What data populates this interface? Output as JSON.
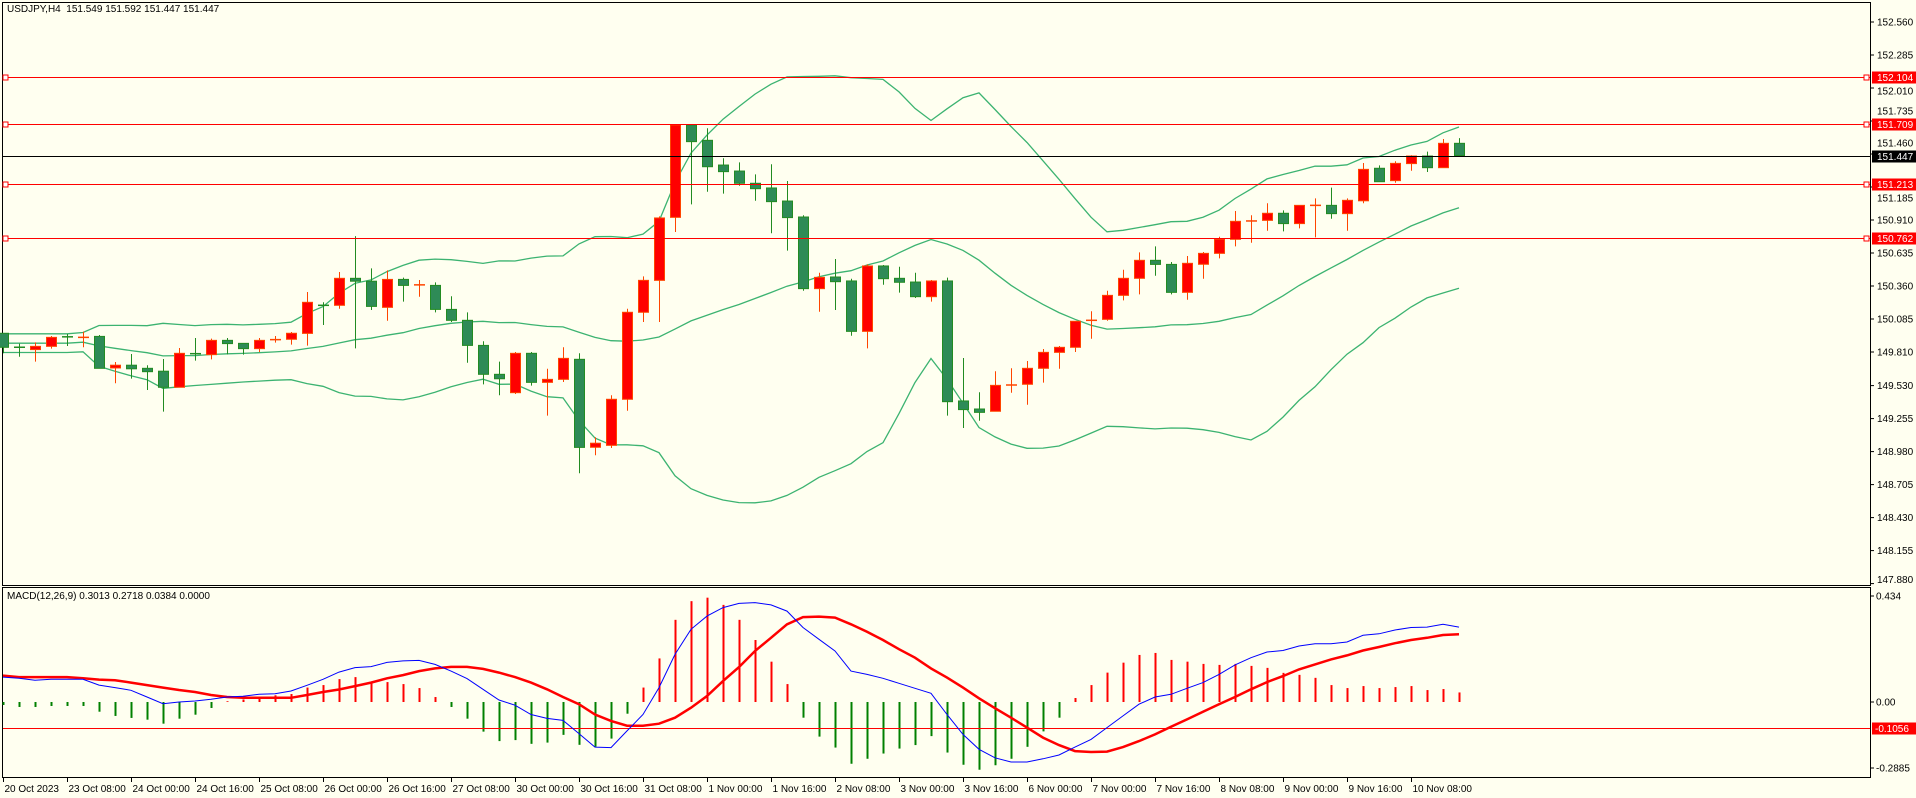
{
  "symbol_header": "USDJPY,H4  151.549 151.592 151.447 151.447",
  "macd_header": "MACD(12,26,9) 0.3013 0.2718 0.0384 0.0000",
  "colors": {
    "background": "#FFFFF0",
    "bull_fill": "#FF0000",
    "bull_border": "#FF4500",
    "bear_fill": "#2E8B57",
    "bear_border": "#228B22",
    "bands": "#3CB371",
    "hline": "#FF0000",
    "bid_line": "#000000",
    "macd_line": "#0000FF",
    "signal_line": "#FF0000",
    "hist_pos": "#FF0000",
    "hist_neg": "#008000"
  },
  "price_axis": {
    "min": 147.868,
    "max": 152.56,
    "ticks": [
      "152.560",
      "152.285",
      "152.010",
      "151.735",
      "151.460",
      "151.185",
      "150.910",
      "150.635",
      "150.360",
      "150.085",
      "149.810",
      "149.530",
      "149.255",
      "148.980",
      "148.705",
      "148.430",
      "148.155",
      "147.880"
    ]
  },
  "horizontal_lines": [
    {
      "price": 152.104,
      "label": "152.104",
      "kind": "level"
    },
    {
      "price": 151.709,
      "label": "151.709",
      "kind": "level"
    },
    {
      "price": 151.213,
      "label": "151.213",
      "kind": "level"
    },
    {
      "price": 150.762,
      "label": "150.762",
      "kind": "level"
    },
    {
      "price": 151.447,
      "label": "151.447",
      "kind": "bid"
    }
  ],
  "time_axis": [
    "20 Oct 2023",
    "23 Oct 08:00",
    "24 Oct 00:00",
    "24 Oct 16:00",
    "25 Oct 08:00",
    "26 Oct 00:00",
    "26 Oct 16:00",
    "27 Oct 08:00",
    "30 Oct 00:00",
    "30 Oct 16:00",
    "31 Oct 08:00",
    "1 Nov 00:00",
    "1 Nov 16:00",
    "2 Nov 08:00",
    "3 Nov 00:00",
    "3 Nov 16:00",
    "6 Nov 00:00",
    "7 Nov 00:00",
    "7 Nov 16:00",
    "8 Nov 08:00",
    "9 Nov 00:00",
    "9 Nov 16:00",
    "10 Nov 08:00"
  ],
  "chart_data": {
    "type": "candlestick",
    "title": "USDJPY,H4",
    "ohlc_fields": [
      "open",
      "high",
      "low",
      "close"
    ],
    "ohlc": [
      [
        149.966,
        149.966,
        149.8,
        149.849
      ],
      [
        149.85,
        149.88,
        149.77,
        149.849
      ],
      [
        149.83,
        149.89,
        149.73,
        149.857
      ],
      [
        149.857,
        149.943,
        149.838,
        149.932
      ],
      [
        149.943,
        149.96,
        149.86,
        149.93
      ],
      [
        149.93,
        149.98,
        149.85,
        149.934
      ],
      [
        149.94,
        149.952,
        149.674,
        149.674
      ],
      [
        149.677,
        149.727,
        149.55,
        149.7
      ],
      [
        149.7,
        149.793,
        149.588,
        149.67
      ],
      [
        149.674,
        149.7,
        149.493,
        149.646
      ],
      [
        149.65,
        149.752,
        149.313,
        149.516
      ],
      [
        149.516,
        149.843,
        149.516,
        149.799
      ],
      [
        149.804,
        149.927,
        149.738,
        149.788
      ],
      [
        149.788,
        149.921,
        149.749,
        149.907
      ],
      [
        149.907,
        149.927,
        149.79,
        149.88
      ],
      [
        149.882,
        149.882,
        149.788,
        149.838
      ],
      [
        149.838,
        149.927,
        149.81,
        149.907
      ],
      [
        149.91,
        149.943,
        149.888,
        149.916
      ],
      [
        149.916,
        149.977,
        149.871,
        149.966
      ],
      [
        149.965,
        150.31,
        149.863,
        150.224
      ],
      [
        150.2,
        150.225,
        150.035,
        150.198
      ],
      [
        150.199,
        150.477,
        150.17,
        150.424
      ],
      [
        150.424,
        150.776,
        149.84,
        150.4
      ],
      [
        150.4,
        150.507,
        150.16,
        150.19
      ],
      [
        150.182,
        150.49,
        150.07,
        150.415
      ],
      [
        150.415,
        150.43,
        150.23,
        150.365
      ],
      [
        150.368,
        150.41,
        150.27,
        150.371
      ],
      [
        150.365,
        150.39,
        150.14,
        150.165
      ],
      [
        150.165,
        150.275,
        150.06,
        150.074
      ],
      [
        150.074,
        150.14,
        149.72,
        149.865
      ],
      [
        149.865,
        149.9,
        149.54,
        149.624
      ],
      [
        149.624,
        149.73,
        149.45,
        149.587
      ],
      [
        149.471,
        149.81,
        149.46,
        149.799
      ],
      [
        149.799,
        149.81,
        149.53,
        149.557
      ],
      [
        149.557,
        149.67,
        149.28,
        149.582
      ],
      [
        149.582,
        149.85,
        149.56,
        149.757
      ],
      [
        149.749,
        149.8,
        148.8,
        149.015
      ],
      [
        149.016,
        149.1,
        148.95,
        149.05
      ],
      [
        149.032,
        149.45,
        149.01,
        149.416
      ],
      [
        149.416,
        150.17,
        149.32,
        150.141
      ],
      [
        150.141,
        150.44,
        150.06,
        150.407
      ],
      [
        150.407,
        150.94,
        150.06,
        150.927
      ],
      [
        150.932,
        151.71,
        150.81,
        151.702
      ],
      [
        151.702,
        151.71,
        151.04,
        151.563
      ],
      [
        151.574,
        151.675,
        151.145,
        151.354
      ],
      [
        151.368,
        151.425,
        151.13,
        151.313
      ],
      [
        151.318,
        151.39,
        151.195,
        151.216
      ],
      [
        151.216,
        151.29,
        151.07,
        151.171
      ],
      [
        151.177,
        151.375,
        150.8,
        151.063
      ],
      [
        151.068,
        151.235,
        150.655,
        150.93
      ],
      [
        150.935,
        150.95,
        150.32,
        150.338
      ],
      [
        150.338,
        150.47,
        150.145,
        150.432
      ],
      [
        150.435,
        150.585,
        150.16,
        150.396
      ],
      [
        150.402,
        150.42,
        149.945,
        149.982
      ],
      [
        149.982,
        150.54,
        149.84,
        150.527
      ],
      [
        150.527,
        150.535,
        150.37,
        150.421
      ],
      [
        150.424,
        150.52,
        150.305,
        150.391
      ],
      [
        150.393,
        150.47,
        150.26,
        150.271
      ],
      [
        150.271,
        150.41,
        150.23,
        150.402
      ],
      [
        150.402,
        150.43,
        149.28,
        149.396
      ],
      [
        149.402,
        149.76,
        149.177,
        149.33
      ],
      [
        149.335,
        149.475,
        149.237,
        149.307
      ],
      [
        149.316,
        149.65,
        149.316,
        149.532
      ],
      [
        149.53,
        149.675,
        149.47,
        149.54
      ],
      [
        149.541,
        149.735,
        149.37,
        149.674
      ],
      [
        149.674,
        149.835,
        149.555,
        149.807
      ],
      [
        149.807,
        149.86,
        149.67,
        149.849
      ],
      [
        149.849,
        150.066,
        149.81,
        150.066
      ],
      [
        150.066,
        150.15,
        149.92,
        150.082
      ],
      [
        150.082,
        150.32,
        150.07,
        150.282
      ],
      [
        150.282,
        150.495,
        150.24,
        150.424
      ],
      [
        150.424,
        150.64,
        150.29,
        150.574
      ],
      [
        150.574,
        150.69,
        150.445,
        150.54
      ],
      [
        150.54,
        150.56,
        150.29,
        150.307
      ],
      [
        150.307,
        150.61,
        150.245,
        150.549
      ],
      [
        150.541,
        150.643,
        150.42,
        150.632
      ],
      [
        150.632,
        150.77,
        150.59,
        150.749
      ],
      [
        150.749,
        150.985,
        150.69,
        150.899
      ],
      [
        150.899,
        150.95,
        150.72,
        150.905
      ],
      [
        150.907,
        151.05,
        150.82,
        150.966
      ],
      [
        150.966,
        150.99,
        150.815,
        150.88
      ],
      [
        150.88,
        151.032,
        150.84,
        151.032
      ],
      [
        151.03,
        151.09,
        150.765,
        151.034
      ],
      [
        151.032,
        151.18,
        150.92,
        150.963
      ],
      [
        150.963,
        151.09,
        150.82,
        151.074
      ],
      [
        151.07,
        151.385,
        151.05,
        151.332
      ],
      [
        151.341,
        151.365,
        151.229,
        151.229
      ],
      [
        151.238,
        151.4,
        151.22,
        151.382
      ],
      [
        151.38,
        151.45,
        151.32,
        151.443
      ],
      [
        151.443,
        151.48,
        151.31,
        151.346
      ],
      [
        151.346,
        151.585,
        151.346,
        151.549
      ],
      [
        151.549,
        151.592,
        151.447,
        151.447
      ]
    ],
    "bollinger": {
      "period": 20,
      "deviation": 2
    },
    "macd": {
      "axis": {
        "min": -0.2885,
        "max": 0.434,
        "labels": [
          "0.434",
          "0.00",
          "-0.2885"
        ],
        "label_values": [
          0.434,
          0,
          -0.2885
        ]
      },
      "level": {
        "value": -0.1056,
        "label": "-0.1056"
      },
      "main": [
        0.1,
        0.095,
        0.087,
        0.091,
        0.091,
        0.091,
        0.068,
        0.058,
        0.047,
        0.02,
        -0.007,
        0.0,
        0.004,
        0.011,
        0.02,
        0.023,
        0.031,
        0.033,
        0.044,
        0.067,
        0.091,
        0.12,
        0.138,
        0.142,
        0.159,
        0.165,
        0.167,
        0.151,
        0.124,
        0.094,
        0.051,
        0.008,
        -0.013,
        -0.05,
        -0.066,
        -0.074,
        -0.127,
        -0.181,
        -0.183,
        -0.116,
        -0.05,
        0.058,
        0.191,
        0.292,
        0.345,
        0.379,
        0.396,
        0.399,
        0.39,
        0.365,
        0.299,
        0.252,
        0.205,
        0.124,
        0.111,
        0.095,
        0.075,
        0.055,
        0.035,
        -0.05,
        -0.13,
        -0.19,
        -0.224,
        -0.241,
        -0.241,
        -0.228,
        -0.213,
        -0.181,
        -0.15,
        -0.103,
        -0.056,
        -0.009,
        0.02,
        0.031,
        0.055,
        0.078,
        0.111,
        0.149,
        0.178,
        0.201,
        0.207,
        0.225,
        0.234,
        0.234,
        0.241,
        0.268,
        0.274,
        0.289,
        0.299,
        0.301,
        0.312,
        0.301
      ],
      "signal": [
        0.106,
        0.1,
        0.1,
        0.1,
        0.1,
        0.095,
        0.09,
        0.087,
        0.078,
        0.068,
        0.058,
        0.048,
        0.04,
        0.028,
        0.02,
        0.017,
        0.017,
        0.017,
        0.017,
        0.028,
        0.04,
        0.05,
        0.064,
        0.078,
        0.095,
        0.108,
        0.124,
        0.135,
        0.141,
        0.141,
        0.133,
        0.118,
        0.1,
        0.078,
        0.051,
        0.02,
        -0.009,
        -0.05,
        -0.076,
        -0.095,
        -0.095,
        -0.087,
        -0.063,
        -0.023,
        0.024,
        0.084,
        0.14,
        0.205,
        0.258,
        0.312,
        0.341,
        0.343,
        0.339,
        0.312,
        0.282,
        0.249,
        0.212,
        0.178,
        0.135,
        0.098,
        0.058,
        0.015,
        -0.025,
        -0.063,
        -0.103,
        -0.143,
        -0.173,
        -0.197,
        -0.201,
        -0.199,
        -0.181,
        -0.157,
        -0.13,
        -0.099,
        -0.07,
        -0.039,
        -0.009,
        0.02,
        0.051,
        0.08,
        0.104,
        0.131,
        0.151,
        0.171,
        0.187,
        0.207,
        0.221,
        0.236,
        0.249,
        0.258,
        0.269,
        0.272
      ],
      "histogram": [
        -0.012,
        -0.02,
        -0.02,
        -0.016,
        -0.016,
        -0.016,
        -0.039,
        -0.056,
        -0.064,
        -0.071,
        -0.087,
        -0.067,
        -0.051,
        -0.024,
        0.003,
        0.01,
        0.015,
        0.027,
        0.032,
        0.058,
        0.068,
        0.092,
        0.1,
        0.078,
        0.08,
        0.072,
        0.056,
        0.02,
        -0.02,
        -0.067,
        -0.119,
        -0.157,
        -0.153,
        -0.168,
        -0.163,
        -0.132,
        -0.172,
        -0.18,
        -0.147,
        -0.047,
        0.058,
        0.175,
        0.33,
        0.405,
        0.419,
        0.39,
        0.33,
        0.249,
        0.162,
        0.072,
        -0.063,
        -0.139,
        -0.183,
        -0.248,
        -0.228,
        -0.207,
        -0.187,
        -0.173,
        -0.137,
        -0.203,
        -0.252,
        -0.272,
        -0.254,
        -0.228,
        -0.18,
        -0.118,
        -0.063,
        0.016,
        0.068,
        0.118,
        0.158,
        0.189,
        0.197,
        0.169,
        0.162,
        0.153,
        0.149,
        0.153,
        0.145,
        0.137,
        0.117,
        0.109,
        0.097,
        0.068,
        0.056,
        0.064,
        0.056,
        0.06,
        0.064,
        0.048,
        0.052,
        0.0384
      ]
    }
  }
}
